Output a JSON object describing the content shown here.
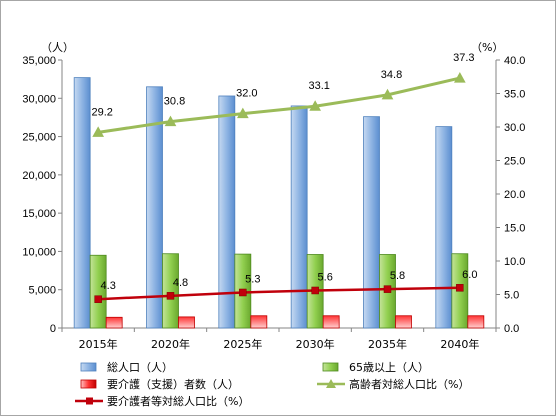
{
  "chart_data": {
    "type": "bar",
    "categories": [
      "2015年",
      "2020年",
      "2025年",
      "2030年",
      "2035年",
      "2040年"
    ],
    "left_axis": {
      "unit_label": "（人）",
      "ylim": [
        0,
        35000
      ],
      "step": 5000,
      "tick_format": "thousands"
    },
    "right_axis": {
      "unit_label": "（%）",
      "ylim": [
        0,
        40
      ],
      "step": 5,
      "tick_format": "one_decimal"
    },
    "series": [
      {
        "name": "総人口（人）",
        "type": "bar",
        "axis": "left",
        "color": "#8eb4e3",
        "values": [
          32700,
          31500,
          30300,
          29000,
          27600,
          26300
        ]
      },
      {
        "name": "65歳以上（人）",
        "type": "bar",
        "axis": "left",
        "color": "#92d050",
        "values": [
          9500,
          9700,
          9650,
          9600,
          9600,
          9700
        ]
      },
      {
        "name": "要介護（支援）者数（人）",
        "type": "bar",
        "axis": "left",
        "color": "#ff3333",
        "values": [
          1400,
          1450,
          1600,
          1600,
          1600,
          1600
        ]
      },
      {
        "name": "高齢者対総人口比（%）",
        "type": "line",
        "axis": "right",
        "color": "#9bbb59",
        "marker": "triangle",
        "values": [
          29.2,
          30.8,
          32.0,
          33.1,
          34.8,
          37.3
        ]
      },
      {
        "name": "要介護者等対総人口比（%）",
        "type": "line",
        "axis": "right",
        "color": "#c0000b",
        "marker": "square",
        "values": [
          4.3,
          4.8,
          5.3,
          5.6,
          5.8,
          6.0
        ]
      }
    ],
    "data_labels": {
      "elderly_ratio": [
        "29.2",
        "30.8",
        "32.0",
        "33.1",
        "34.8",
        "37.3"
      ],
      "care_ratio": [
        "4.3",
        "4.8",
        "5.3",
        "5.6",
        "5.8",
        "6.0"
      ]
    },
    "legend": {
      "placement": "bottom",
      "items": [
        "総人口（人）",
        "65歳以上（人）",
        "要介護（支援）者数（人）",
        "高齢者対総人口比（%）",
        "要介護者等対総人口比（%）"
      ]
    },
    "grid": false
  }
}
